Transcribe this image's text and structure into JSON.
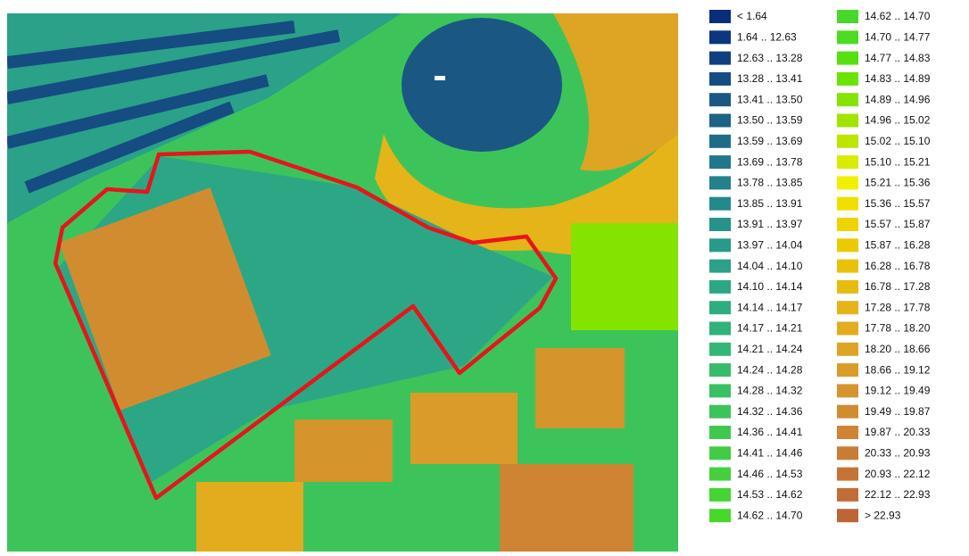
{
  "legend": {
    "items": [
      {
        "label": "< 1.64",
        "color": "#0a2f78"
      },
      {
        "label": "1.64 .. 12.63",
        "color": "#0d3580"
      },
      {
        "label": "12.63 .. 13.28",
        "color": "#103f84"
      },
      {
        "label": "13.28 .. 13.41",
        "color": "#154c82"
      },
      {
        "label": "13.41 .. 13.50",
        "color": "#1a5883"
      },
      {
        "label": "13.50 .. 13.59",
        "color": "#1c6386"
      },
      {
        "label": "13.59 .. 13.69",
        "color": "#1e6d88"
      },
      {
        "label": "13.69 .. 13.78",
        "color": "#20788a"
      },
      {
        "label": "13.78 .. 13.85",
        "color": "#22818b"
      },
      {
        "label": "13.85 .. 13.91",
        "color": "#24898b"
      },
      {
        "label": "13.91 .. 13.97",
        "color": "#26928a"
      },
      {
        "label": "13.97 .. 14.04",
        "color": "#28998a"
      },
      {
        "label": "14.04 .. 14.10",
        "color": "#2aa188"
      },
      {
        "label": "14.10 .. 14.14",
        "color": "#2ca785"
      },
      {
        "label": "14.14 .. 14.17",
        "color": "#2ead7f"
      },
      {
        "label": "14.17 .. 14.21",
        "color": "#30b27a"
      },
      {
        "label": "14.21 .. 14.24",
        "color": "#33b774"
      },
      {
        "label": "14.24 .. 14.28",
        "color": "#36bc6c"
      },
      {
        "label": "14.28 .. 14.32",
        "color": "#39c063"
      },
      {
        "label": "14.32 .. 14.36",
        "color": "#3cc45a"
      },
      {
        "label": "14.36 .. 14.41",
        "color": "#3fc850"
      },
      {
        "label": "14.41 .. 14.46",
        "color": "#42cc46"
      },
      {
        "label": "14.46 .. 14.53",
        "color": "#44d03c"
      },
      {
        "label": "14.53 .. 14.62",
        "color": "#46d434"
      },
      {
        "label": "14.62 .. 14.70",
        "color": "#48d82c"
      },
      {
        "label": "14.62 .. 14.70",
        "color": "#48d82c"
      },
      {
        "label": "14.70 .. 14.77",
        "color": "#4cdc20"
      },
      {
        "label": "14.77 .. 14.83",
        "color": "#56e010"
      },
      {
        "label": "14.83 .. 14.89",
        "color": "#6ae400"
      },
      {
        "label": "14.89 .. 14.96",
        "color": "#84e400"
      },
      {
        "label": "14.96 .. 15.02",
        "color": "#a0e400"
      },
      {
        "label": "15.02 .. 15.10",
        "color": "#bce600"
      },
      {
        "label": "15.10 .. 15.21",
        "color": "#d8ec00"
      },
      {
        "label": "15.21 .. 15.36",
        "color": "#f0f000"
      },
      {
        "label": "15.36 .. 15.57",
        "color": "#f0e000"
      },
      {
        "label": "15.57 .. 15.87",
        "color": "#eed400"
      },
      {
        "label": "15.87 .. 16.28",
        "color": "#ecca00"
      },
      {
        "label": "16.28 .. 16.78",
        "color": "#e8c208"
      },
      {
        "label": "16.78 .. 17.28",
        "color": "#e6bc10"
      },
      {
        "label": "17.28 .. 17.78",
        "color": "#e4b418"
      },
      {
        "label": "17.78 .. 18.20",
        "color": "#e2ac1e"
      },
      {
        "label": "18.20 .. 18.66",
        "color": "#dea424"
      },
      {
        "label": "18.66 .. 19.12",
        "color": "#da9c28"
      },
      {
        "label": "19.12 .. 19.49",
        "color": "#d6942c"
      },
      {
        "label": "19.49 .. 19.87",
        "color": "#d28c30"
      },
      {
        "label": "19.87 .. 20.33",
        "color": "#ce8432"
      },
      {
        "label": "20.33 .. 20.93",
        "color": "#ca7c34"
      },
      {
        "label": "20.93 .. 22.12",
        "color": "#c67436"
      },
      {
        "label": "22.12 .. 22.93",
        "color": "#c26c38"
      },
      {
        "label": "> 22.93",
        "color": "#be6438"
      }
    ]
  }
}
